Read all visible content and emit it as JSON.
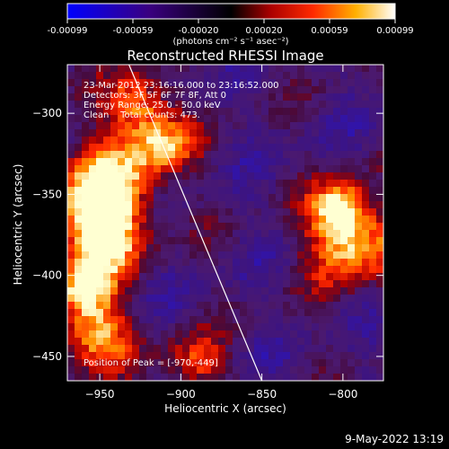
{
  "colorbar": {
    "tick_labels": [
      "-0.00099",
      "-0.00059",
      "-0.00020",
      "0.00020",
      "0.00059",
      "0.00099"
    ],
    "unit": "(photons cm⁻² s⁻¹ asec⁻²)"
  },
  "annotations": {
    "time_range": "23-Mar-2012 23:16:16.000 to 23:16:52.000",
    "detectors": "Detectors: 3F 5F 6F 7F 8F, Att 0",
    "energy": "Energy Range: 25.0 - 50.0 keV",
    "method": "Clean    Total counts: 473.",
    "peak": "Position of Peak = [-970,-449]"
  },
  "timestamp": "9-May-2022 13:19",
  "chart_data": {
    "type": "heatmap",
    "title": "Reconstructed RHESSI Image",
    "xlabel": "Heliocentric X (arcsec)",
    "ylabel": "Heliocentric Y (arcsec)",
    "xlim": [
      -970,
      -775
    ],
    "ylim": [
      -465,
      -270
    ],
    "x_ticks": [
      -950,
      -900,
      -850,
      -800
    ],
    "y_ticks": [
      -300,
      -350,
      -400,
      -450
    ],
    "color_range": [
      -0.00099,
      0.00099
    ],
    "limb_line": [
      {
        "x": -932,
        "y": -270
      },
      {
        "x": -850,
        "y": -465
      }
    ],
    "peak_position": [
      -970,
      -449
    ]
  }
}
